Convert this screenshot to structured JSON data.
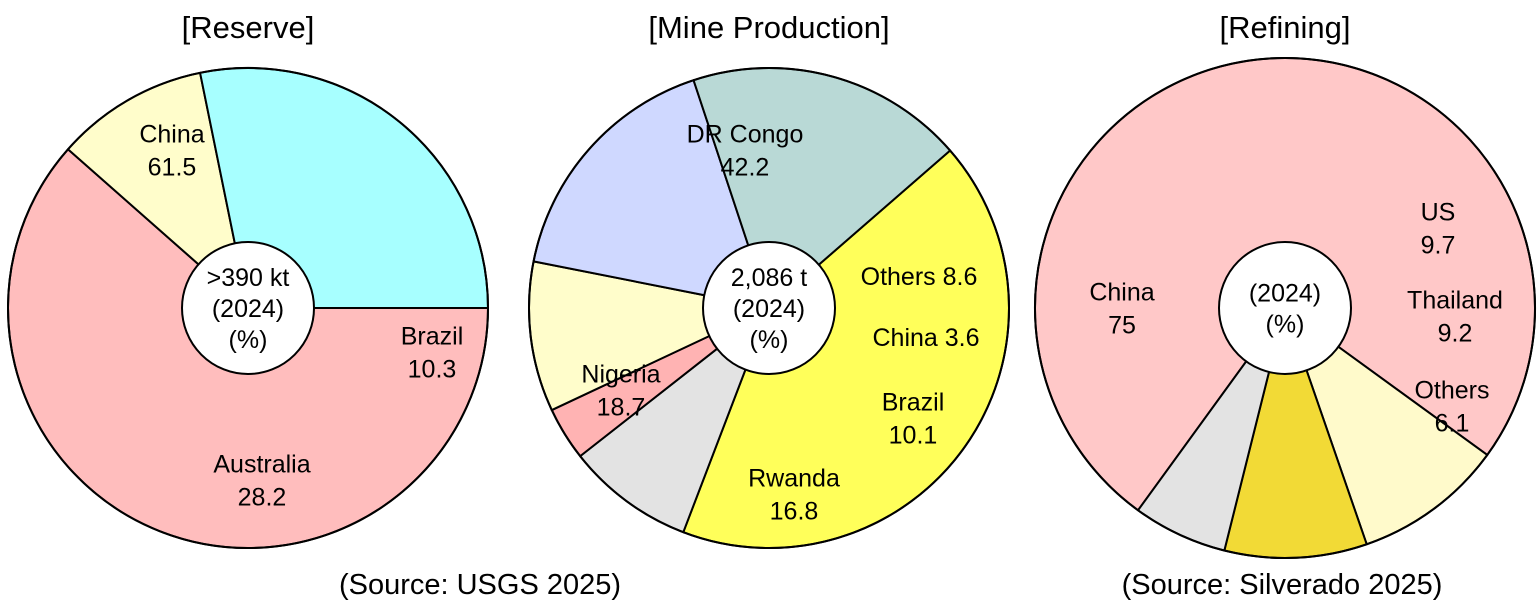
{
  "chart_data": [
    {
      "type": "pie",
      "title": "[Reserve]",
      "center_lines": [
        ">390 kt",
        "(2024)",
        "(%)"
      ],
      "slices": [
        {
          "name": "China",
          "value": 61.5,
          "label_lines": [
            "China",
            "61.5"
          ],
          "color": "#FFBDBD"
        },
        {
          "name": "Brazil",
          "value": 10.3,
          "label_lines": [
            "Brazil",
            "10.3"
          ],
          "color": "#FFFDCB"
        },
        {
          "name": "Australia",
          "value": 28.2,
          "label_lines": [
            "Australia",
            "28.2"
          ],
          "color": "#A7FFFF"
        }
      ]
    },
    {
      "type": "pie",
      "title": "[Mine Production]",
      "center_lines": [
        "2,086 t",
        "(2024)",
        "(%)"
      ],
      "slices": [
        {
          "name": "DR Congo",
          "value": 42.2,
          "label_lines": [
            "DR Congo",
            "42.2"
          ],
          "color": "#FFFF5A"
        },
        {
          "name": "Others",
          "value": 8.6,
          "label_lines": [
            "Others 8.6"
          ],
          "color": "#E3E3E3"
        },
        {
          "name": "China",
          "value": 3.6,
          "label_lines": [
            "China 3.6"
          ],
          "color": "#FFB3B3"
        },
        {
          "name": "Brazil",
          "value": 10.1,
          "label_lines": [
            "Brazil",
            "10.1"
          ],
          "color": "#FFFDCB"
        },
        {
          "name": "Rwanda",
          "value": 16.8,
          "label_lines": [
            "Rwanda",
            "16.8"
          ],
          "color": "#CFD8FF"
        },
        {
          "name": "Nigeria",
          "value": 18.7,
          "label_lines": [
            "Nigeria",
            "18.7"
          ],
          "color": "#B9D9D6"
        }
      ]
    },
    {
      "type": "pie",
      "title": "[Refining]",
      "center_lines": [
        "(2024)",
        "(%)"
      ],
      "slices": [
        {
          "name": "China",
          "value": 75,
          "label_lines": [
            "China",
            "75"
          ],
          "color": "#FFC8C8"
        },
        {
          "name": "US",
          "value": 9.7,
          "label_lines": [
            "US",
            "9.7"
          ],
          "color": "#FFFACB"
        },
        {
          "name": "Thailand",
          "value": 9.2,
          "label_lines": [
            "Thailand",
            "9.2"
          ],
          "color": "#F2DA36"
        },
        {
          "name": "Others",
          "value": 6.1,
          "label_lines": [
            "Others",
            "6.1"
          ],
          "color": "#E3E3E3"
        }
      ]
    }
  ],
  "sources": [
    "(Source: USGS 2025)",
    "(Source: Silverado 2025)"
  ]
}
